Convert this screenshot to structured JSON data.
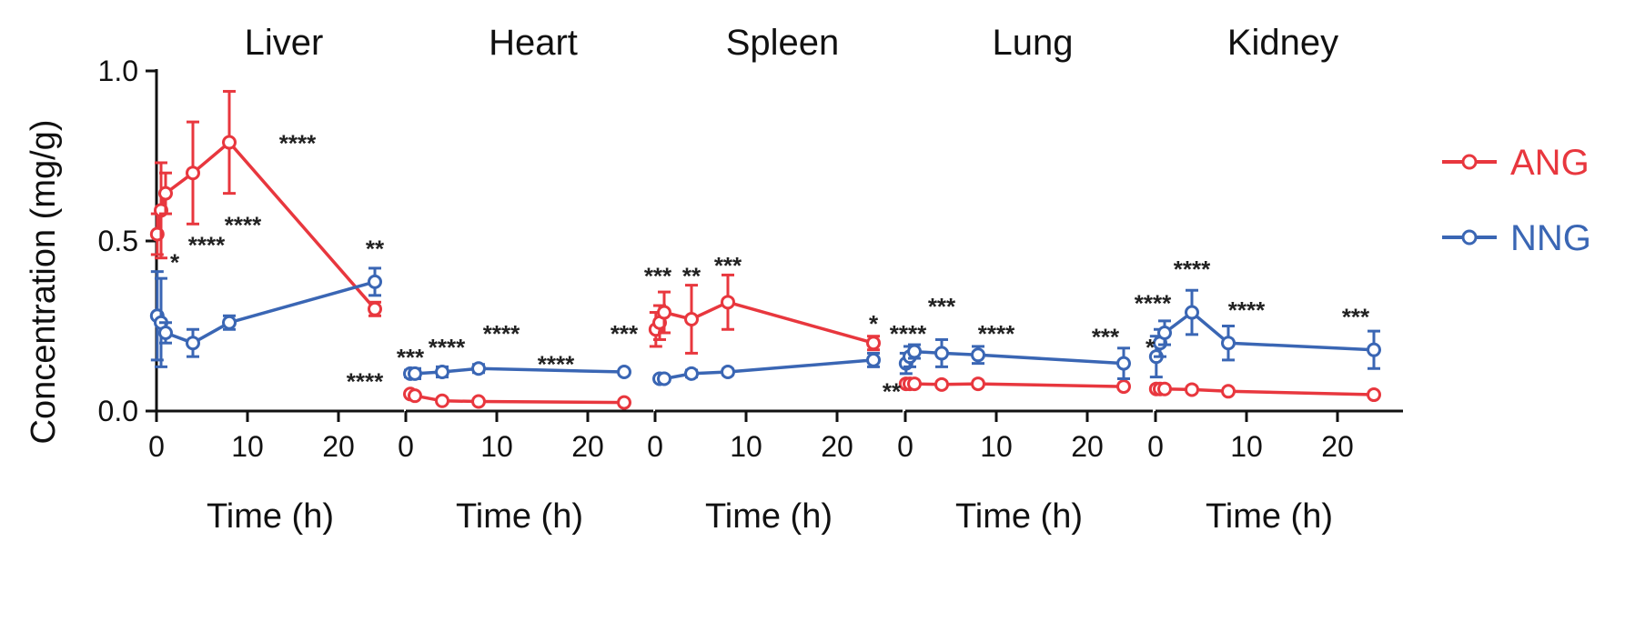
{
  "chart_data": {
    "type": "line",
    "ylabel": "Concentration (mg/g)",
    "xlabel": "Time (h)",
    "ylim": [
      0,
      1.0
    ],
    "xlim": [
      0,
      26
    ],
    "yticks": [
      "0.0",
      "0.5",
      "1.0"
    ],
    "xticks": [
      "0",
      "10",
      "20"
    ],
    "colors": {
      "ANG": "#e8373e",
      "NNG": "#3a66b4"
    },
    "legend": [
      "ANG",
      "NNG"
    ],
    "panels": [
      {
        "title": "Liver",
        "series": [
          {
            "name": "ANG",
            "x": [
              0.083,
              0.5,
              1,
              4,
              8,
              24
            ],
            "y": [
              0.52,
              0.59,
              0.64,
              0.7,
              0.79,
              0.3
            ],
            "err": [
              0.06,
              0.14,
              0.06,
              0.15,
              0.15,
              0.02
            ]
          },
          {
            "name": "NNG",
            "x": [
              0.083,
              0.5,
              1,
              4,
              8,
              24
            ],
            "y": [
              0.28,
              0.26,
              0.23,
              0.2,
              0.26,
              0.38
            ],
            "err": [
              0.13,
              0.13,
              0.03,
              0.04,
              0.02,
              0.04
            ]
          }
        ],
        "sig": [
          {
            "text": "*",
            "x": 2.0,
            "y": 0.44
          },
          {
            "text": "****",
            "x": 5.5,
            "y": 0.49
          },
          {
            "text": "****",
            "x": 9.5,
            "y": 0.55
          },
          {
            "text": "****",
            "x": 15.5,
            "y": 0.79
          },
          {
            "text": "**",
            "x": 24,
            "y": 0.48
          }
        ]
      },
      {
        "title": "Heart",
        "series": [
          {
            "name": "ANG",
            "x": [
              0.5,
              1,
              4,
              8,
              24
            ],
            "y": [
              0.05,
              0.045,
              0.03,
              0.028,
              0.025
            ],
            "err": [
              0.005,
              0.005,
              0.004,
              0.004,
              0.004
            ]
          },
          {
            "name": "NNG",
            "x": [
              0.5,
              1,
              4,
              8,
              24
            ],
            "y": [
              0.11,
              0.11,
              0.115,
              0.125,
              0.115
            ],
            "err": [
              0.01,
              0.015,
              0.015,
              0.012,
              0.006
            ]
          }
        ],
        "sig": [
          {
            "text": "***",
            "x": 0.5,
            "y": 0.16
          },
          {
            "text": "****",
            "x": 4.5,
            "y": 0.19
          },
          {
            "text": "****",
            "x": 10.5,
            "y": 0.23
          },
          {
            "text": "****",
            "x": 16.5,
            "y": 0.14
          },
          {
            "text": "***",
            "x": 24,
            "y": 0.23
          },
          {
            "text": "****",
            "x": -4.5,
            "y": 0.09
          }
        ]
      },
      {
        "title": "Spleen",
        "series": [
          {
            "name": "ANG",
            "x": [
              0.083,
              0.5,
              1,
              4,
              8,
              24
            ],
            "y": [
              0.24,
              0.26,
              0.29,
              0.27,
              0.32,
              0.2
            ],
            "err": [
              0.05,
              0.05,
              0.06,
              0.1,
              0.08,
              0.02
            ]
          },
          {
            "name": "NNG",
            "x": [
              0.5,
              1,
              4,
              8,
              24
            ],
            "y": [
              0.095,
              0.095,
              0.11,
              0.115,
              0.15
            ],
            "err": [
              0.008,
              0.008,
              0.01,
              0.008,
              0.02
            ]
          }
        ],
        "sig": [
          {
            "text": "***",
            "x": 0.3,
            "y": 0.4
          },
          {
            "text": "**",
            "x": 4,
            "y": 0.4
          },
          {
            "text": "***",
            "x": 8,
            "y": 0.43
          },
          {
            "text": "*",
            "x": 24,
            "y": 0.26
          }
        ]
      },
      {
        "title": "Lung",
        "series": [
          {
            "name": "ANG",
            "x": [
              0.083,
              0.5,
              1,
              4,
              8,
              24
            ],
            "y": [
              0.08,
              0.08,
              0.08,
              0.078,
              0.08,
              0.072
            ],
            "err": [
              0.004,
              0.004,
              0.004,
              0.004,
              0.004,
              0.004
            ]
          },
          {
            "name": "NNG",
            "x": [
              0.083,
              0.5,
              1,
              4,
              8,
              24
            ],
            "y": [
              0.14,
              0.16,
              0.175,
              0.17,
              0.165,
              0.14
            ],
            "err": [
              0.03,
              0.03,
              0.02,
              0.04,
              0.025,
              0.045
            ]
          }
        ],
        "sig": [
          {
            "text": "****",
            "x": 0.3,
            "y": 0.23
          },
          {
            "text": "***",
            "x": 4,
            "y": 0.31
          },
          {
            "text": "****",
            "x": 10,
            "y": 0.23
          },
          {
            "text": "***",
            "x": 22,
            "y": 0.22
          },
          {
            "text": "**",
            "x": -1.5,
            "y": 0.06
          }
        ]
      },
      {
        "title": "Kidney",
        "series": [
          {
            "name": "ANG",
            "x": [
              0.083,
              0.5,
              1,
              4,
              8,
              24
            ],
            "y": [
              0.065,
              0.065,
              0.065,
              0.063,
              0.058,
              0.048
            ],
            "err": [
              0.004,
              0.004,
              0.004,
              0.004,
              0.004,
              0.004
            ]
          },
          {
            "name": "NNG",
            "x": [
              0.083,
              0.5,
              1,
              4,
              8,
              24
            ],
            "y": [
              0.16,
              0.2,
              0.23,
              0.29,
              0.2,
              0.18
            ],
            "err": [
              0.06,
              0.04,
              0.035,
              0.065,
              0.05,
              0.055
            ]
          }
        ],
        "sig": [
          {
            "text": "****",
            "x": -0.3,
            "y": 0.32
          },
          {
            "text": "*",
            "x": -0.6,
            "y": 0.19
          },
          {
            "text": "****",
            "x": 4,
            "y": 0.42
          },
          {
            "text": "****",
            "x": 10,
            "y": 0.3
          },
          {
            "text": "***",
            "x": 22,
            "y": 0.28
          }
        ]
      }
    ]
  }
}
